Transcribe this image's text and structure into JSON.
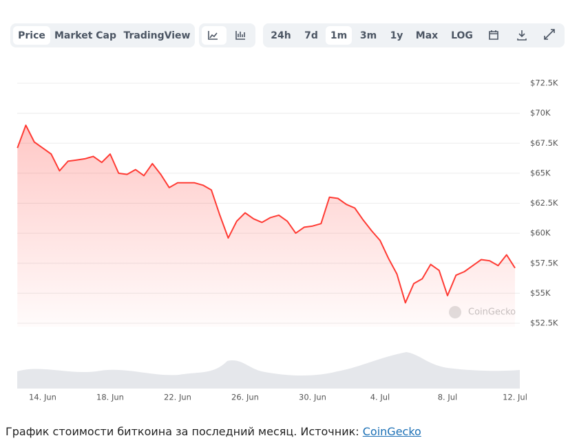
{
  "toolbar": {
    "views": [
      "Price",
      "Market Cap",
      "TradingView"
    ],
    "ranges": [
      "24h",
      "7d",
      "1m",
      "3m",
      "1y",
      "Max",
      "LOG"
    ]
  },
  "chart_data": {
    "type": "line",
    "watermark": "CoinGecko",
    "categories": [
      null,
      null,
      null,
      "14. Jun",
      null,
      null,
      null,
      null,
      null,
      null,
      null,
      "18. Jun",
      null,
      null,
      null,
      null,
      null,
      null,
      null,
      "22. Jun",
      null,
      null,
      null,
      null,
      null,
      null,
      null,
      "26. Jun",
      null,
      null,
      null,
      null,
      null,
      null,
      null,
      "30. Jun",
      null,
      null,
      null,
      null,
      null,
      null,
      null,
      "4. Jul",
      null,
      null,
      null,
      null,
      null,
      null,
      null,
      "8. Jul",
      null,
      null,
      null,
      null,
      null,
      null,
      null,
      "12. Jul"
    ],
    "series": [
      {
        "name": "Price",
        "color": "#ff3a33",
        "values": [
          67100,
          69000,
          67600,
          67100,
          66600,
          65200,
          66000,
          66100,
          66200,
          66400,
          65900,
          66600,
          65000,
          64900,
          65300,
          64800,
          65800,
          64900,
          63800,
          64200,
          64200,
          64200,
          64000,
          63600,
          61500,
          59600,
          61000,
          61700,
          61200,
          60900,
          61300,
          61500,
          61000,
          60000,
          60500,
          60600,
          60800,
          63000,
          62900,
          62400,
          62100,
          61100,
          60200,
          59400,
          57900,
          56600,
          54200,
          55800,
          56200,
          57400,
          56900,
          54800,
          56500,
          56800,
          57300,
          57800,
          57700,
          57300,
          58200,
          57100
        ]
      }
    ],
    "ylim": [
      52200,
      72800
    ],
    "yticks": [
      {
        "value": 52500,
        "label": "$52.5K"
      },
      {
        "value": 55000,
        "label": "$55K"
      },
      {
        "value": 57500,
        "label": "$57.5K"
      },
      {
        "value": 60000,
        "label": "$60K"
      },
      {
        "value": 62500,
        "label": "$62.5K"
      },
      {
        "value": 65000,
        "label": "$65K"
      },
      {
        "value": 67500,
        "label": "$67.5K"
      },
      {
        "value": 70000,
        "label": "$70K"
      },
      {
        "value": 72500,
        "label": "$72.5K"
      }
    ],
    "grid": true
  },
  "caption": {
    "text": "График стоимости биткоина за последний месяц. Источник: ",
    "link": "CoinGecko"
  }
}
